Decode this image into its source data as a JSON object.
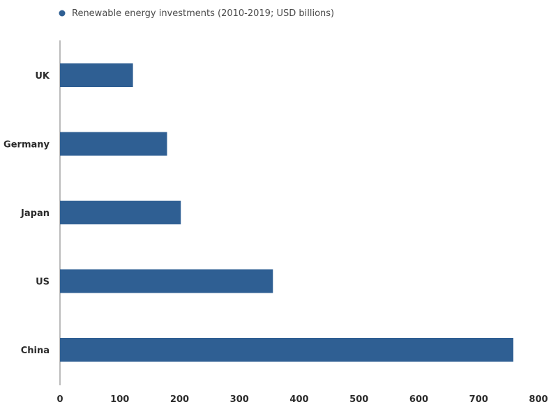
{
  "chart_data": {
    "type": "bar",
    "orientation": "horizontal",
    "categories": [
      "UK",
      "Germany",
      "Japan",
      "US",
      "China"
    ],
    "series": [
      {
        "name": "Renewable energy investments (2010-2019; USD billions)",
        "values": [
          122,
          179,
          202,
          356,
          758
        ]
      }
    ],
    "xlim": [
      0,
      800
    ],
    "x_ticks": [
      "0",
      "100",
      "200",
      "300",
      "400",
      "500",
      "600",
      "700",
      "800"
    ],
    "grid": false,
    "legend_position": "top-left",
    "colors": {
      "bar": "#2f5f93",
      "axis": "#777777"
    }
  }
}
